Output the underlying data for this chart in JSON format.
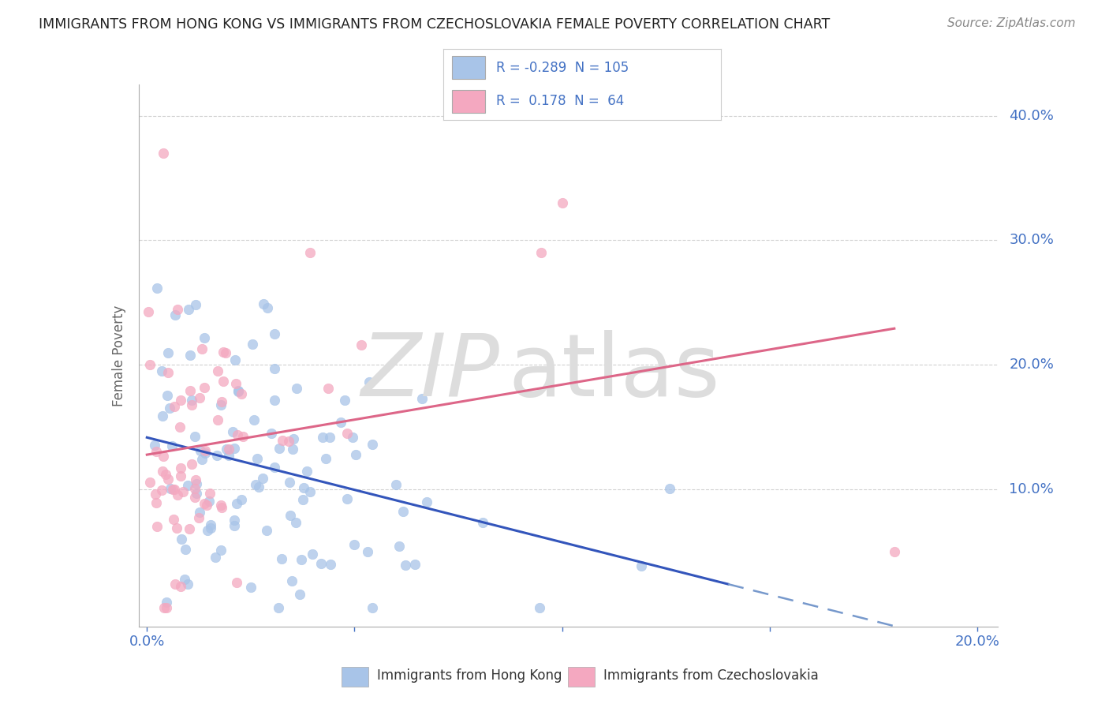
{
  "title": "IMMIGRANTS FROM HONG KONG VS IMMIGRANTS FROM CZECHOSLOVAKIA FEMALE POVERTY CORRELATION CHART",
  "source": "Source: ZipAtlas.com",
  "ylabel": "Female Poverty",
  "legend_label1": "Immigrants from Hong Kong",
  "legend_label2": "Immigrants from Czechoslovakia",
  "R1": -0.289,
  "N1": 105,
  "R2": 0.178,
  "N2": 64,
  "color1": "#a8c4e8",
  "color2": "#f4a8c0",
  "trendline1_solid_color": "#3355bb",
  "trendline1_dash_color": "#7799cc",
  "trendline2_color": "#dd6688",
  "background_color": "#ffffff",
  "grid_color": "#cccccc",
  "axis_color": "#aaaaaa",
  "tick_color": "#4472c4",
  "title_color": "#222222",
  "source_color": "#888888",
  "ylabel_color": "#666666",
  "watermark_color": "#dddddd",
  "seed1": 42,
  "seed2": 99,
  "marker_size": 80,
  "marker_alpha": 0.75,
  "xlim": [
    -0.002,
    0.205
  ],
  "ylim": [
    -0.01,
    0.425
  ],
  "xticks": [
    0.0,
    0.05,
    0.1,
    0.15,
    0.2
  ],
  "yticks": [
    0.1,
    0.2,
    0.3,
    0.4
  ],
  "xticklabels": [
    "0.0%",
    "",
    "",
    "",
    "20.0%"
  ],
  "yticklabels_right": [
    "10.0%",
    "20.0%",
    "30.0%",
    "40.0%"
  ]
}
